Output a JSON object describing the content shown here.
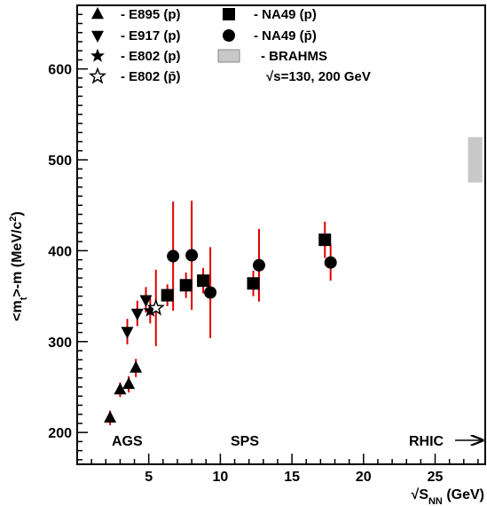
{
  "chart_data": {
    "type": "scatter",
    "xlabel": "√S_NN (GeV)",
    "ylabel": "<m_t>-m (MeV/c^2)",
    "xlim": [
      0,
      28.5
    ],
    "ylim": [
      165,
      670
    ],
    "x_ticks": [
      5,
      10,
      15,
      20,
      25
    ],
    "y_ticks": [
      200,
      300,
      400,
      500,
      600
    ],
    "series": [
      {
        "name": "- E895 (p)",
        "marker": "triangle-up",
        "filled": true,
        "points": [
          {
            "x": 2.3,
            "y": 216,
            "err": 8
          },
          {
            "x": 3.0,
            "y": 247,
            "err": 8
          },
          {
            "x": 3.6,
            "y": 253,
            "err": 9
          },
          {
            "x": 4.1,
            "y": 271,
            "err": 10
          }
        ]
      },
      {
        "name": "- E917 (p)",
        "marker": "triangle-down",
        "filled": true,
        "points": [
          {
            "x": 3.5,
            "y": 311,
            "err": 14
          },
          {
            "x": 4.2,
            "y": 331,
            "err": 14
          },
          {
            "x": 4.8,
            "y": 346,
            "err": 14
          }
        ]
      },
      {
        "name": "- E802 (p)",
        "marker": "star",
        "filled": true,
        "points": [
          {
            "x": 5.1,
            "y": 334,
            "err": 14
          }
        ]
      },
      {
        "name": "- E802 (p̄)",
        "marker": "star",
        "filled": false,
        "points": [
          {
            "x": 5.5,
            "y": 337,
            "err": 42
          }
        ]
      },
      {
        "name": "- NA49 (p)",
        "marker": "square",
        "filled": true,
        "points": [
          {
            "x": 6.3,
            "y": 351,
            "err": 12
          },
          {
            "x": 7.6,
            "y": 362,
            "err": 14
          },
          {
            "x": 8.8,
            "y": 367,
            "err": 14
          },
          {
            "x": 12.3,
            "y": 364,
            "err": 14
          },
          {
            "x": 17.3,
            "y": 412,
            "err": 20
          }
        ]
      },
      {
        "name": "- NA49 (p̄)",
        "marker": "circle",
        "filled": true,
        "points": [
          {
            "x": 6.7,
            "y": 394,
            "err": 60
          },
          {
            "x": 8.0,
            "y": 395,
            "err": 60
          },
          {
            "x": 9.3,
            "y": 354,
            "err": 50
          },
          {
            "x": 12.7,
            "y": 384,
            "err": 40
          },
          {
            "x": 17.7,
            "y": 387,
            "err": 20
          }
        ]
      }
    ],
    "band": {
      "name": "- BRAHMS",
      "x_range": [
        27.3,
        28.3
      ],
      "y_range": [
        475,
        525
      ],
      "color": "#c8c8c8"
    },
    "band_note": "√s=130, 200 GeV",
    "regions": [
      "AGS",
      "SPS",
      "RHIC"
    ],
    "error_bar_color": "#e00000",
    "marker_color": "#000000",
    "grid": false,
    "legend_position": "top-left"
  }
}
